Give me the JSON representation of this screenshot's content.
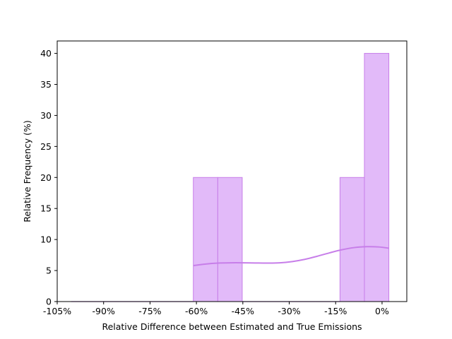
{
  "chart_data": {
    "type": "bar",
    "subtype": "histogram-with-kde",
    "title": "",
    "xlabel": "Relative Difference between Estimated and True Emissions",
    "ylabel": "Relative Frequency (%)",
    "xlim": [
      -105,
      8
    ],
    "ylim": [
      0,
      42
    ],
    "x_ticks": [
      -105,
      -90,
      -75,
      -60,
      -45,
      -30,
      -15,
      0
    ],
    "x_tick_labels": [
      "-105%",
      "-90%",
      "-75%",
      "-60%",
      "-45%",
      "-30%",
      "-15%",
      "0%"
    ],
    "y_ticks": [
      0,
      5,
      10,
      15,
      20,
      25,
      30,
      35,
      40
    ],
    "y_tick_labels": [
      "0",
      "5",
      "10",
      "15",
      "20",
      "25",
      "30",
      "35",
      "40"
    ],
    "bins": [
      {
        "x0": -100.5,
        "x1": -92.6,
        "value": 0
      },
      {
        "x0": -92.6,
        "x1": -84.7,
        "value": 0
      },
      {
        "x0": -84.7,
        "x1": -76.8,
        "value": 0
      },
      {
        "x0": -76.8,
        "x1": -68.9,
        "value": 0
      },
      {
        "x0": -68.9,
        "x1": -61.0,
        "value": 0
      },
      {
        "x0": -61.0,
        "x1": -53.1,
        "value": 20
      },
      {
        "x0": -53.1,
        "x1": -45.2,
        "value": 20
      },
      {
        "x0": -45.2,
        "x1": -37.3,
        "value": 0
      },
      {
        "x0": -37.3,
        "x1": -29.4,
        "value": 0
      },
      {
        "x0": -29.4,
        "x1": -21.5,
        "value": 0
      },
      {
        "x0": -21.5,
        "x1": -13.6,
        "value": 0
      },
      {
        "x0": -13.6,
        "x1": -5.7,
        "value": 20
      },
      {
        "x0": -5.7,
        "x1": 2.2,
        "value": 40
      }
    ],
    "kde": {
      "x": [
        -61.0,
        -57,
        -53,
        -49,
        -45,
        -41,
        -37,
        -33,
        -29,
        -25,
        -21,
        -17,
        -13,
        -9,
        -5,
        -1,
        2.2
      ],
      "y": [
        5.8,
        6.05,
        6.2,
        6.25,
        6.25,
        6.22,
        6.2,
        6.25,
        6.45,
        6.8,
        7.3,
        7.85,
        8.35,
        8.7,
        8.85,
        8.8,
        8.6
      ]
    },
    "colors": {
      "bar_fill": "#e2baf9",
      "bar_edge": "#c77ee9",
      "kde_line": "#c77ee9"
    },
    "grid": false,
    "legend": "none"
  }
}
